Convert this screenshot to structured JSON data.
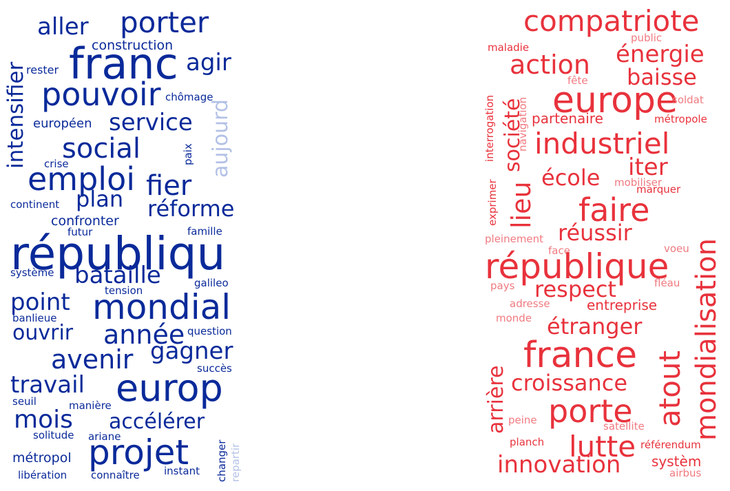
{
  "colors": {
    "left_dark": "#0a2a9a",
    "left_light": "#b3c1e6",
    "right_main": "#e8323c",
    "right_light": "#f07a80"
  },
  "left_cloud": {
    "words": [
      "aller",
      "porter",
      "franc",
      "agir",
      "construction",
      "rester",
      "intensifier",
      "pouvoir",
      "chômage",
      "aujourd",
      "européen",
      "service",
      "social",
      "crise",
      "paix",
      "emploi",
      "fier",
      "plan",
      "continent",
      "réforme",
      "confronter",
      "futur",
      "famille",
      "républiqu",
      "système",
      "bataille",
      "galileo",
      "tension",
      "point",
      "mondial",
      "banlieue",
      "ouvrir",
      "année",
      "question",
      "avenir",
      "gagner",
      "succès",
      "travail",
      "europ",
      "seuil",
      "manière",
      "mois",
      "accélérer",
      "solitude",
      "ariane",
      "changer",
      "repartir",
      "projet",
      "métropol",
      "instant",
      "libération",
      "connaître"
    ]
  },
  "right_cloud": {
    "words": [
      "compatriote",
      "public",
      "maladie",
      "énergie",
      "action",
      "fête",
      "baisse",
      "europe",
      "soldat",
      "interrogation",
      "navigation",
      "société",
      "partenaire",
      "métropole",
      "industriel",
      "iter",
      "lieu",
      "école",
      "mobiliser",
      "marquer",
      "exprimer",
      "faire",
      "mondialisation",
      "réussir",
      "pleinement",
      "voeu",
      "face",
      "république",
      "pays",
      "respect",
      "fléau",
      "adresse",
      "entreprise",
      "monde",
      "étranger",
      "arrière",
      "france",
      "atout",
      "croissance",
      "porte",
      "peine",
      "satellite",
      "planch",
      "lutte",
      "référendum",
      "innovation",
      "systèm",
      "airbus"
    ]
  }
}
